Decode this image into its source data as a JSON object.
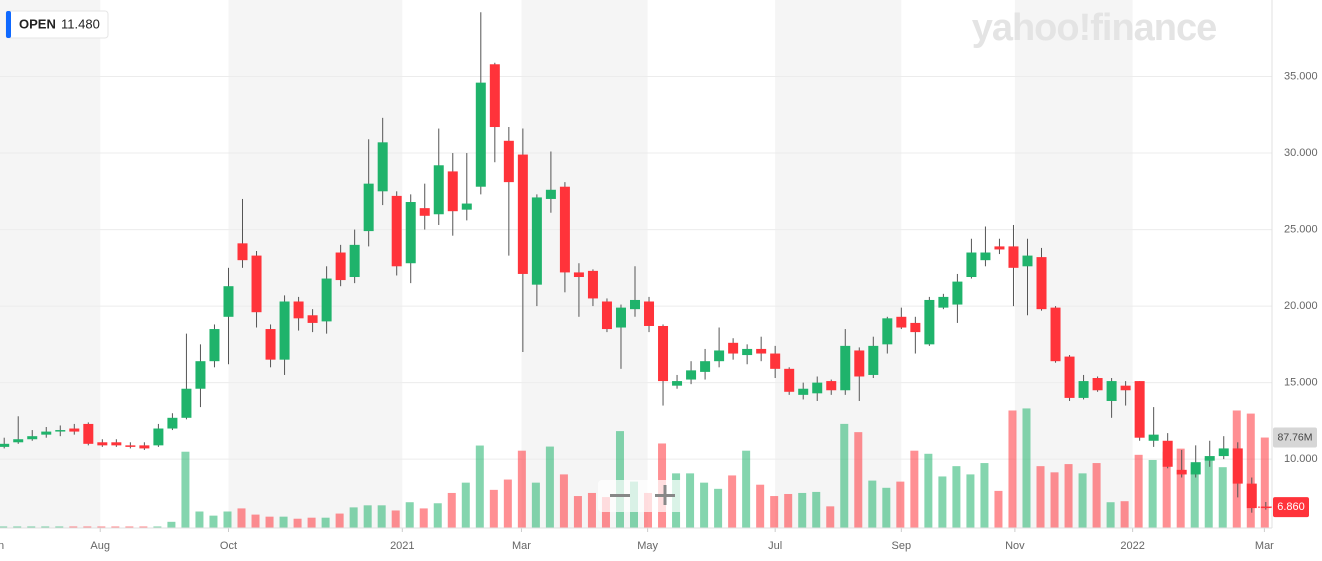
{
  "chart_data": {
    "type": "candlestick",
    "watermark": "yahoo!finance",
    "open_badge": {
      "label": "OPEN",
      "value": {
        "value": 11.48,
        "label": "11.480"
      }
    },
    "current_price": {
      "value": 6.86,
      "label": "6.860"
    },
    "volume_badge": {
      "value": 87.76,
      "label": "87.76M"
    },
    "up_color": "#1fb36b",
    "down_color": "#ff333a",
    "band_color": "#f5f5f5",
    "grid": true,
    "xlim": [
      -0.3,
      90.3
    ],
    "xticks": [
      {
        "value": -0.64,
        "label": "Jun"
      },
      {
        "value": 6.85,
        "label": "Aug"
      },
      {
        "value": 16.0,
        "label": "Oct"
      },
      {
        "value": 28.4,
        "label": "2021"
      },
      {
        "value": 36.9,
        "label": "Mar"
      },
      {
        "value": 45.9,
        "label": "May"
      },
      {
        "value": 55.0,
        "label": "Jul"
      },
      {
        "value": 64.0,
        "label": "Sep"
      },
      {
        "value": 72.1,
        "label": "Nov"
      },
      {
        "value": 80.5,
        "label": "2022"
      },
      {
        "value": 89.9,
        "label": "Mar"
      }
    ],
    "ylim": [
      5.5,
      40
    ],
    "yticks": [
      {
        "value": 10,
        "label": "10.000"
      },
      {
        "value": 15,
        "label": "15.000"
      },
      {
        "value": 20,
        "label": "20.000"
      },
      {
        "value": 25,
        "label": "25.000"
      },
      {
        "value": 30,
        "label": "30.000"
      },
      {
        "value": 35,
        "label": "35.000"
      }
    ],
    "volume_ylim": [
      0,
      130
    ],
    "open": [
      10.8,
      11.1,
      11.3,
      11.6,
      11.9,
      12.0,
      12.3,
      11.1,
      11.1,
      10.9,
      10.9,
      10.9,
      12.0,
      12.7,
      14.6,
      16.4,
      19.3,
      24.1,
      23.3,
      18.5,
      16.5,
      20.3,
      19.4,
      19.0,
      23.5,
      21.9,
      24.9,
      27.5,
      27.2,
      22.8,
      26.4,
      26.0,
      28.8,
      26.3,
      27.8,
      35.8,
      30.8,
      29.9,
      21.4,
      27.0,
      27.8,
      22.2,
      22.3,
      20.3,
      18.6,
      19.8,
      20.3,
      18.7,
      14.8,
      15.2,
      15.7,
      16.4,
      17.6,
      16.8,
      17.2,
      16.9,
      15.9,
      14.2,
      14.3,
      15.1,
      14.5,
      17.1,
      15.5,
      17.5,
      19.3,
      18.9,
      17.5,
      19.9,
      20.1,
      21.9,
      23.0,
      23.9,
      23.9,
      22.6,
      23.2,
      19.9,
      16.7,
      14.0,
      15.3,
      13.8,
      14.8,
      15.1,
      11.2,
      11.2,
      9.3,
      9.0,
      9.9,
      10.2,
      10.7,
      8.4,
      6.9
    ],
    "high": [
      11.4,
      12.8,
      11.9,
      12.1,
      12.2,
      12.3,
      12.4,
      11.3,
      11.3,
      11.1,
      11.1,
      12.3,
      13.0,
      18.2,
      17.5,
      18.8,
      22.5,
      27.0,
      23.6,
      18.8,
      20.7,
      20.6,
      19.8,
      22.6,
      24.0,
      25.0,
      30.9,
      32.3,
      27.5,
      27.3,
      28.0,
      31.6,
      30.0,
      30.0,
      39.2,
      35.9,
      31.7,
      31.6,
      27.3,
      30.1,
      28.1,
      22.8,
      22.4,
      20.5,
      20.1,
      22.6,
      20.6,
      18.8,
      15.5,
      16.4,
      17.2,
      18.6,
      17.9,
      17.5,
      18.0,
      17.4,
      16.0,
      15.0,
      15.4,
      15.2,
      18.5,
      17.3,
      18.0,
      19.3,
      19.9,
      19.3,
      20.6,
      20.8,
      22.1,
      24.4,
      25.2,
      24.4,
      25.3,
      24.4,
      23.8,
      20.0,
      16.8,
      15.5,
      15.4,
      15.3,
      15.1,
      15.1,
      13.4,
      11.7,
      10.6,
      10.9,
      11.2,
      11.5,
      11.1,
      8.8,
      7.2
    ],
    "low": [
      10.7,
      11.0,
      11.2,
      11.4,
      11.5,
      11.6,
      10.9,
      10.8,
      10.8,
      10.7,
      10.6,
      10.8,
      11.9,
      12.6,
      13.4,
      16.0,
      16.2,
      22.5,
      18.6,
      16.0,
      15.5,
      18.4,
      18.3,
      18.2,
      21.3,
      21.5,
      23.9,
      26.6,
      22.0,
      21.5,
      25.0,
      25.3,
      24.6,
      25.6,
      27.3,
      29.4,
      23.3,
      17.0,
      20.0,
      26.1,
      20.9,
      19.3,
      20.0,
      18.3,
      15.9,
      19.3,
      18.3,
      13.5,
      14.6,
      14.9,
      15.2,
      16.0,
      16.5,
      16.2,
      16.4,
      15.3,
      14.2,
      13.9,
      13.8,
      14.2,
      14.2,
      13.8,
      15.3,
      16.9,
      18.5,
      16.9,
      17.4,
      19.8,
      18.9,
      21.8,
      22.6,
      23.4,
      20.0,
      19.4,
      19.7,
      16.3,
      13.8,
      13.9,
      14.4,
      12.7,
      13.5,
      11.2,
      10.8,
      9.4,
      8.8,
      8.8,
      9.5,
      10.0,
      7.5,
      6.5,
      6.7
    ],
    "close": [
      11.0,
      11.3,
      11.5,
      11.8,
      11.9,
      11.8,
      11.0,
      10.9,
      10.9,
      10.8,
      10.7,
      12.0,
      12.7,
      14.6,
      16.4,
      18.5,
      21.3,
      23.0,
      19.6,
      16.5,
      20.3,
      19.2,
      18.9,
      21.8,
      21.7,
      24.0,
      28.0,
      30.7,
      22.6,
      26.8,
      25.9,
      29.2,
      26.2,
      26.7,
      34.6,
      31.7,
      28.1,
      22.1,
      27.1,
      27.6,
      22.2,
      21.9,
      20.5,
      18.5,
      19.9,
      20.4,
      18.7,
      15.1,
      15.1,
      15.8,
      16.4,
      17.1,
      16.9,
      17.2,
      16.9,
      15.9,
      14.4,
      14.6,
      15.0,
      14.5,
      17.4,
      15.4,
      17.4,
      19.2,
      18.6,
      18.3,
      20.4,
      20.6,
      21.6,
      23.5,
      23.5,
      23.7,
      22.5,
      23.3,
      19.8,
      16.4,
      14.0,
      15.1,
      14.5,
      15.1,
      14.5,
      11.4,
      11.6,
      9.5,
      9.0,
      9.8,
      10.2,
      10.7,
      8.4,
      6.8,
      6.86
    ],
    "volume": [
      1.5,
      1.5,
      1.5,
      1.5,
      1.5,
      1.5,
      1.5,
      1.5,
      1.5,
      1.5,
      1.5,
      1.5,
      6,
      74,
      16,
      12,
      16,
      19,
      13,
      11,
      11,
      9,
      10,
      10,
      14,
      20,
      22,
      22,
      17,
      25,
      19,
      24,
      34,
      44,
      80,
      37,
      47,
      75,
      44,
      79,
      52,
      31,
      34,
      30,
      94,
      45,
      34,
      82,
      53,
      53,
      44,
      38,
      51,
      75,
      42,
      31,
      33,
      34,
      35,
      21,
      101,
      93,
      46,
      39,
      45,
      75,
      72,
      50,
      60,
      52,
      63,
      36,
      114,
      116,
      60,
      54,
      62,
      53,
      63,
      25,
      26,
      71,
      66,
      74,
      77,
      62,
      68,
      59,
      114,
      111,
      87.76
    ]
  }
}
